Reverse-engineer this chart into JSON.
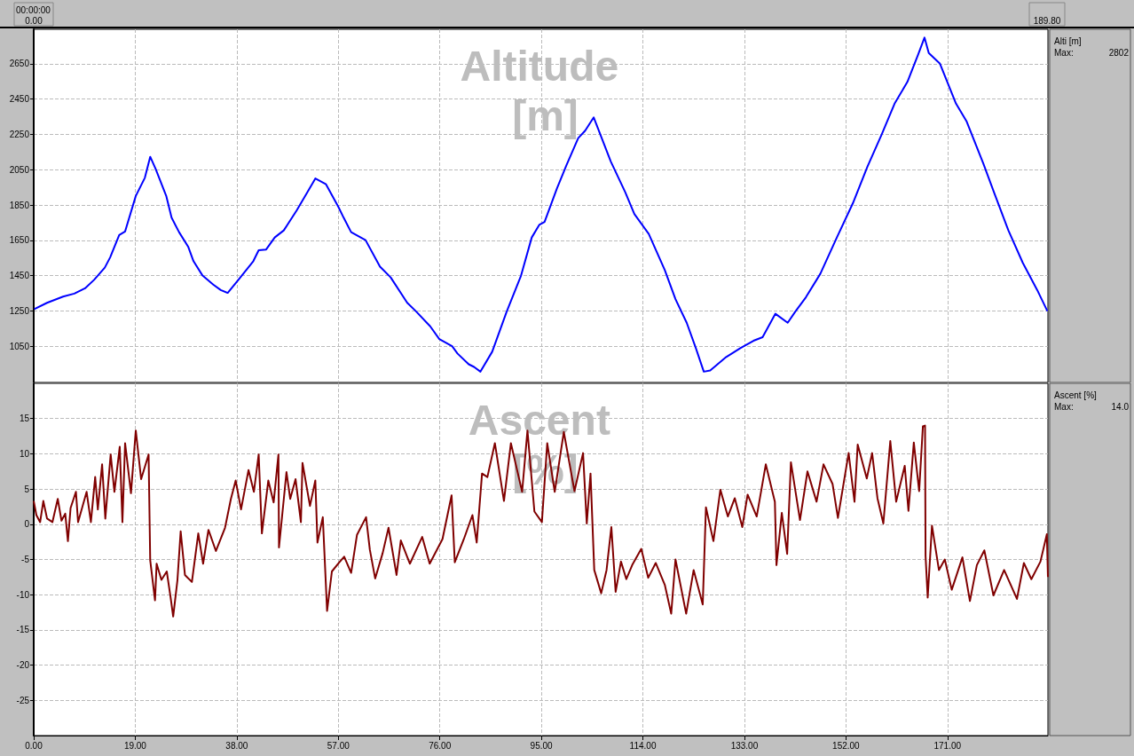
{
  "chart_data": [
    {
      "type": "line",
      "title": "Altitude [m]",
      "annotations": [
        "Alti [m]",
        "Max:",
        "2802",
        "00:00:00",
        "0.00",
        "189.80"
      ],
      "x": [
        0.1,
        2.5,
        5.5,
        7.6,
        9.6,
        11.3,
        13.3,
        14.3,
        16.0,
        17.1,
        19.1,
        20.8,
        21.8,
        22.8,
        24.8,
        25.8,
        27.2,
        28.9,
        29.9,
        31.6,
        33.6,
        35.0,
        36.3,
        38.4,
        41.1,
        42.1,
        43.5,
        45.1,
        46.8,
        49.2,
        51.2,
        52.7,
        54.7,
        57.0,
        58.0,
        59.4,
        62.1,
        64.8,
        66.8,
        69.9,
        71.5,
        74.2,
        75.9,
        78.3,
        79.3,
        81.4,
        82.4,
        83.6,
        85.8,
        88.5,
        91.2,
        93.2,
        94.6,
        95.6,
        97.9,
        99.7,
        101.9,
        103.2,
        104.8,
        108.0,
        110.7,
        112.4,
        115.1,
        118.1,
        120.1,
        122.2,
        123.9,
        125.4,
        126.6,
        129.6,
        132.3,
        134.7,
        136.4,
        138.8,
        141.1,
        142.5,
        144.5,
        147.2,
        150.3,
        153.3,
        156.0,
        158.7,
        161.1,
        163.5,
        165.5,
        166.7,
        167.5,
        169.6,
        172.6,
        174.6,
        177.7,
        179.7,
        182.4,
        185.1,
        187.8,
        189.7
      ],
      "series": [
        {
          "color": "#0000ff",
          "values": [
            1260,
            1296,
            1331,
            1348,
            1378,
            1426,
            1495,
            1553,
            1680,
            1700,
            1901,
            2004,
            2123,
            2055,
            1901,
            1778,
            1696,
            1614,
            1532,
            1450,
            1399,
            1368,
            1352,
            1430,
            1532,
            1594,
            1598,
            1666,
            1706,
            1819,
            1922,
            2000,
            1967,
            1840,
            1778,
            1696,
            1651,
            1501,
            1440,
            1296,
            1249,
            1163,
            1091,
            1050,
            1009,
            948,
            933,
            906,
            1019,
            1245,
            1450,
            1666,
            1737,
            1754,
            1942,
            2076,
            2229,
            2271,
            2346,
            2096,
            1922,
            1799,
            1686,
            1481,
            1317,
            1183,
            1040,
            906,
            913,
            989,
            1040,
            1081,
            1101,
            1234,
            1183,
            1245,
            1327,
            1460,
            1666,
            1860,
            2065,
            2250,
            2424,
            2547,
            2701,
            2798,
            2711,
            2650,
            2424,
            2322,
            2086,
            1922,
            1706,
            1522,
            1368,
            1249
          ]
        }
      ],
      "xlim": [
        0,
        189.8
      ],
      "ylim": [
        845,
        2845
      ],
      "xticks": [
        {
          "value": 0,
          "label": null
        },
        {
          "value": 19,
          "label": null
        },
        {
          "value": 38,
          "label": null
        },
        {
          "value": 57,
          "label": null
        },
        {
          "value": 76,
          "label": null
        },
        {
          "value": 95,
          "label": null
        },
        {
          "value": 114,
          "label": null
        },
        {
          "value": 133,
          "label": null
        },
        {
          "value": 152,
          "label": null
        },
        {
          "value": 171,
          "label": null
        }
      ],
      "yticks": [
        1050,
        1250,
        1450,
        1650,
        1850,
        2050,
        2250,
        2450,
        2650
      ],
      "grid": true,
      "marker": "none",
      "tick_labels": "y"
    },
    {
      "type": "line",
      "title": "Ascent [%]",
      "annotations": [
        "Ascent [%]",
        "Max:",
        "14.0"
      ],
      "x": [
        0,
        0.5,
        1.2,
        1.8,
        2.5,
        3.5,
        4.5,
        5.2,
        5.9,
        6.4,
        6.9,
        7.9,
        8.3,
        9.9,
        10.7,
        11.5,
        12.0,
        12.8,
        13.4,
        14.4,
        15.1,
        16.1,
        16.6,
        17.1,
        18.2,
        19.1,
        20.1,
        21.5,
        21.8,
        22.7,
        23.0,
        23.9,
        24.9,
        25.6,
        26.1,
        26.9,
        27.5,
        28.3,
        29.6,
        30.8,
        31.7,
        32.7,
        34.1,
        35.8,
        36.9,
        37.8,
        38.8,
        40.2,
        41.2,
        42.1,
        42.7,
        43.9,
        44.9,
        45.8,
        45.9,
        47.3,
        48.0,
        49.0,
        50.0,
        50.3,
        51.7,
        52.7,
        53.1,
        54.1,
        54.9,
        55.8,
        57.2,
        58.1,
        59.4,
        60.5,
        62.2,
        62.9,
        63.9,
        65.3,
        66.4,
        67.9,
        68.7,
        70.4,
        72.7,
        74.1,
        76.5,
        78.2,
        78.8,
        80.5,
        82.1,
        82.9,
        83.9,
        84.9,
        86.3,
        88.0,
        89.3,
        91.4,
        92.4,
        93.7,
        95.1,
        96.1,
        97.5,
        99.2,
        101.2,
        102.8,
        103.5,
        104.2,
        104.9,
        106.2,
        107.2,
        108.1,
        108.9,
        109.9,
        110.9,
        112.0,
        113.7,
        115.0,
        116.4,
        118.1,
        119.3,
        120.1,
        122.1,
        123.5,
        125.2,
        125.8,
        127.2,
        128.5,
        129.9,
        131.2,
        132.6,
        133.6,
        135.3,
        137.0,
        138.7,
        139.0,
        140.0,
        141.0,
        141.7,
        143.4,
        144.8,
        146.5,
        147.8,
        149.5,
        150.5,
        152.5,
        153.6,
        154.2,
        155.9,
        156.9,
        157.9,
        159.0,
        160.3,
        161.4,
        163.0,
        163.7,
        164.7,
        165.7,
        166.4,
        166.8,
        166.9,
        167.3,
        168.1,
        169.4,
        170.5,
        171.8,
        173.8,
        175.2,
        176.5,
        177.9,
        179.6,
        181.6,
        184.0,
        185.3,
        186.7,
        188.4,
        189.6,
        189.8
      ],
      "series": [
        {
          "color": "#800000",
          "values": [
            3.3,
            1.3,
            0.3,
            3.3,
            0.8,
            0.3,
            3.6,
            0.5,
            1.5,
            -2.4,
            2.3,
            4.6,
            0.3,
            4.6,
            0.3,
            6.7,
            2.1,
            8.5,
            0.8,
            9.9,
            4.6,
            11.0,
            0.3,
            11.5,
            4.4,
            13.3,
            6.4,
            9.9,
            -5.1,
            -10.8,
            -5.6,
            -7.9,
            -6.7,
            -10.3,
            -13.1,
            -7.9,
            -1.0,
            -7.2,
            -8.2,
            -1.3,
            -5.6,
            -0.8,
            -3.8,
            -0.5,
            3.6,
            6.2,
            2.1,
            7.7,
            4.6,
            9.9,
            -1.3,
            6.2,
            3.1,
            9.9,
            -3.3,
            7.4,
            3.6,
            6.4,
            0.3,
            8.7,
            2.6,
            6.2,
            -2.6,
            1.0,
            -12.3,
            -6.7,
            -5.4,
            -4.6,
            -6.9,
            -1.5,
            1.0,
            -3.6,
            -7.7,
            -4.1,
            -0.5,
            -7.2,
            -2.3,
            -5.6,
            -1.8,
            -5.6,
            -2.1,
            4.1,
            -5.4,
            -2.1,
            1.3,
            -2.6,
            7.2,
            6.7,
            11.5,
            3.3,
            11.5,
            4.6,
            13.3,
            1.8,
            0.3,
            11.5,
            4.6,
            13.1,
            4.7,
            10.1,
            0.1,
            7.2,
            -6.5,
            -9.8,
            -6.5,
            -0.4,
            -9.6,
            -5.3,
            -7.8,
            -5.8,
            -3.5,
            -7.6,
            -5.5,
            -8.6,
            -12.7,
            -5.0,
            -12.7,
            -6.5,
            -11.4,
            2.4,
            -2.4,
            4.9,
            1.1,
            3.7,
            -0.4,
            4.2,
            1.1,
            8.5,
            3.2,
            -5.8,
            1.6,
            -4.2,
            8.8,
            0.6,
            7.5,
            3.2,
            8.5,
            5.7,
            0.9,
            10.1,
            3.2,
            11.3,
            6.5,
            10.1,
            3.7,
            0.1,
            11.8,
            3.2,
            8.3,
            1.9,
            11.6,
            4.7,
            13.9,
            14.0,
            -4.5,
            -10.4,
            -0.2,
            -6.5,
            -5.0,
            -9.3,
            -4.7,
            -10.9,
            -5.8,
            -3.7,
            -10.1,
            -6.5,
            -10.6,
            -5.5,
            -7.8,
            -5.3,
            -1.4,
            -7.5
          ]
        }
      ],
      "xlim": [
        0,
        189.8
      ],
      "ylim": [
        -30,
        20
      ],
      "xticks": [
        {
          "value": 0,
          "label": "0.00"
        },
        {
          "value": 19,
          "label": "19.00"
        },
        {
          "value": 38,
          "label": "38.00"
        },
        {
          "value": 57,
          "label": "57.00"
        },
        {
          "value": 76,
          "label": "76.00"
        },
        {
          "value": 95,
          "label": "95.00"
        },
        {
          "value": 114,
          "label": "114.00"
        },
        {
          "value": 133,
          "label": "133.00"
        },
        {
          "value": 152,
          "label": "152.00"
        },
        {
          "value": 171,
          "label": "171.00"
        }
      ],
      "yticks": [
        -25,
        -20,
        -15,
        -10,
        -5,
        0,
        5,
        10,
        15
      ],
      "grid": true,
      "marker": "none"
    }
  ]
}
